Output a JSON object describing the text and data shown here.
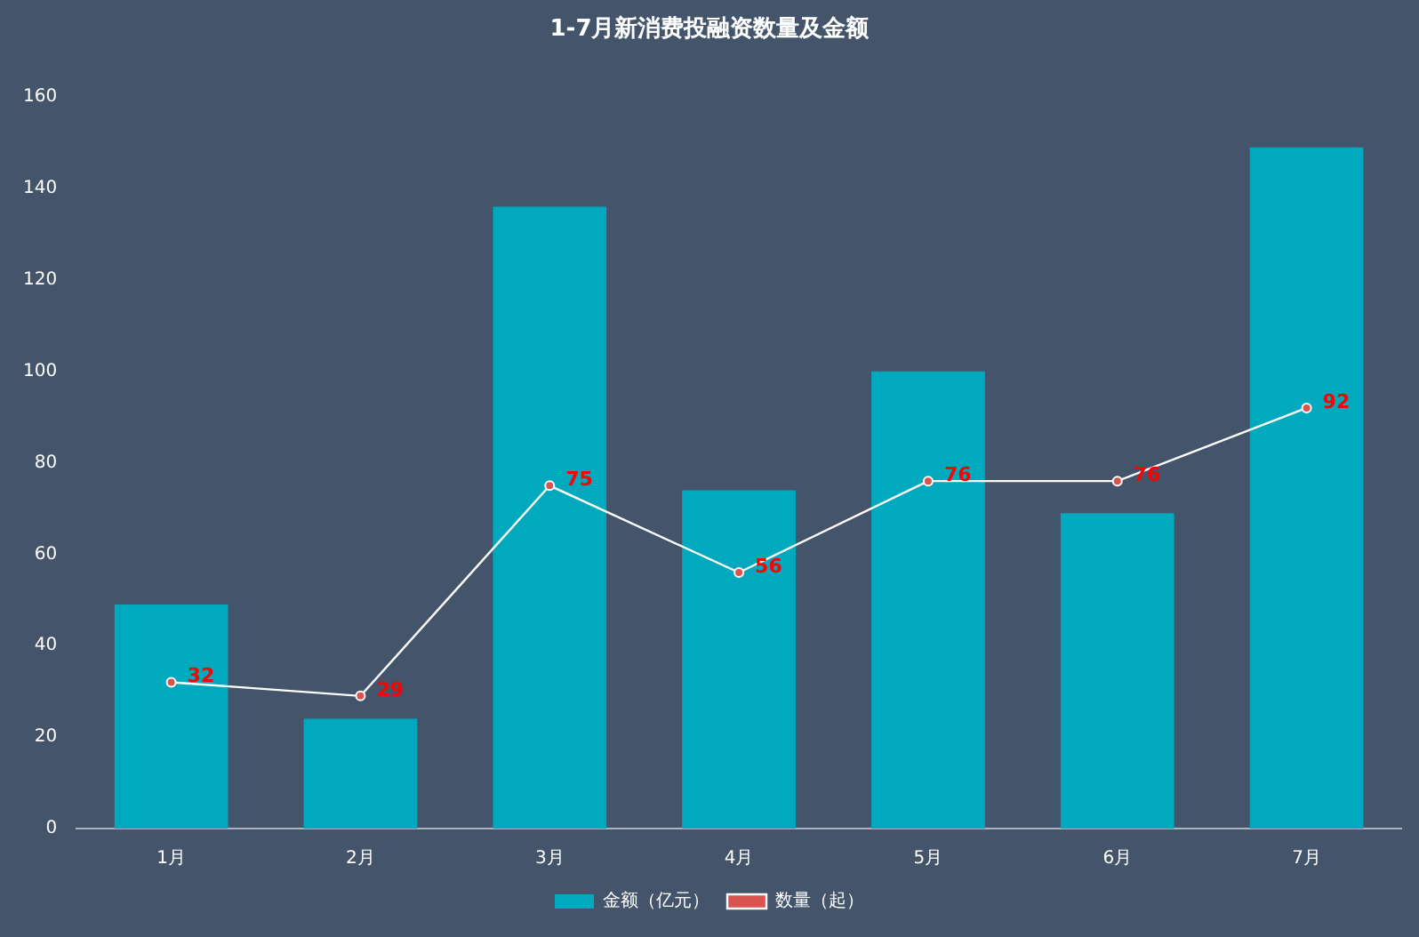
{
  "chart_data": {
    "type": "bar",
    "title": "1-7月新消费投融资数量及金额",
    "categories": [
      "1月",
      "2月",
      "3月",
      "4月",
      "5月",
      "6月",
      "7月"
    ],
    "series": [
      {
        "name": "金额（亿元）",
        "color": "#00a9bd",
        "values": [
          49,
          24,
          136,
          74,
          100,
          69,
          149
        ]
      },
      {
        "name": "数量（起）",
        "type": "line",
        "color": "#ffffff",
        "values": [
          32,
          29,
          75,
          56,
          76,
          76,
          92
        ],
        "value_labels": [
          "32",
          "29",
          "75",
          "56",
          "76",
          "76",
          "92"
        ]
      }
    ],
    "ylim": [
      0,
      160
    ],
    "yticks": [
      0,
      20,
      40,
      60,
      80,
      100,
      120,
      140,
      160
    ],
    "grid": false,
    "legend": "bottom",
    "marker": "circle"
  }
}
